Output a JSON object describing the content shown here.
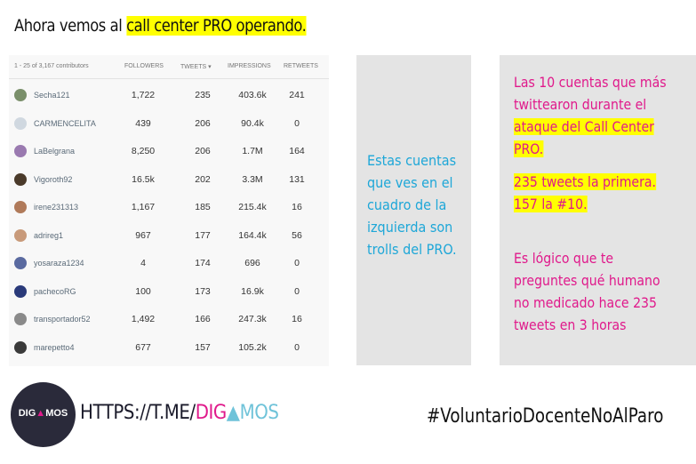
{
  "headline": {
    "prefix": "Ahora vemos al ",
    "highlight": "call center PRO operando."
  },
  "table": {
    "count_label": "1 - 25 of 3,167 contributors",
    "headers": {
      "followers": "FOLLOWERS",
      "tweets": "TWEETS ▾",
      "impressions": "IMPRESSIONS",
      "retweets": "RETWEETS"
    },
    "rows": [
      {
        "name": "Secha121",
        "followers": "1,722",
        "tweets": "235",
        "impressions": "403.6k",
        "retweets": "241",
        "avatar_color": "#7a8f6a"
      },
      {
        "name": "CARMENCELITA",
        "followers": "439",
        "tweets": "206",
        "impressions": "90.4k",
        "retweets": "0",
        "avatar_color": "#d0d8e0"
      },
      {
        "name": "LaBelgrana",
        "followers": "8,250",
        "tweets": "206",
        "impressions": "1.7M",
        "retweets": "164",
        "avatar_color": "#9a7ab0"
      },
      {
        "name": "Vigoroth92",
        "followers": "16.5k",
        "tweets": "202",
        "impressions": "3.3M",
        "retweets": "131",
        "avatar_color": "#4a3a2a"
      },
      {
        "name": "irene231313",
        "followers": "1,167",
        "tweets": "185",
        "impressions": "215.4k",
        "retweets": "16",
        "avatar_color": "#b07a5a"
      },
      {
        "name": "adrireg1",
        "followers": "967",
        "tweets": "177",
        "impressions": "164.4k",
        "retweets": "56",
        "avatar_color": "#c89a7a"
      },
      {
        "name": "yosaraza1234",
        "followers": "4",
        "tweets": "174",
        "impressions": "696",
        "retweets": "0",
        "avatar_color": "#5a6aa0"
      },
      {
        "name": "pachecoRG",
        "followers": "100",
        "tweets": "173",
        "impressions": "16.9k",
        "retweets": "0",
        "avatar_color": "#2a3a7a"
      },
      {
        "name": "transportador52",
        "followers": "1,492",
        "tweets": "166",
        "impressions": "247.3k",
        "retweets": "16",
        "avatar_color": "#8a8a8a"
      },
      {
        "name": "marepetto4",
        "followers": "677",
        "tweets": "157",
        "impressions": "105.2k",
        "retweets": "0",
        "avatar_color": "#3a3a3a"
      }
    ]
  },
  "middle_text": "Estas cuentas que ves en el cuadro de la izquierda son trolls del PRO.",
  "right": {
    "p1_plain": "Las 10 cuentas que más twittearon durante el ",
    "p1_highlight": "ataque del Call Center PRO.",
    "p2_highlight": "235  tweets la primera. 157 la #10.",
    "p3": "Es lógico que te preguntes qué humano no medicado hace 235 tweets en 3 horas"
  },
  "footer": {
    "logo_a": "DIG",
    "logo_b": "MOS",
    "url_a": "HTTPS://T.ME/",
    "url_b": "DIG",
    "url_c": "MOS",
    "hashtag": "#VoluntarioDocenteNoAlParo"
  },
  "colors": {
    "highlight": "#ffff00",
    "pink": "#e0198b",
    "cyan": "#1ea7d8",
    "panel": "#e4e4e4"
  }
}
